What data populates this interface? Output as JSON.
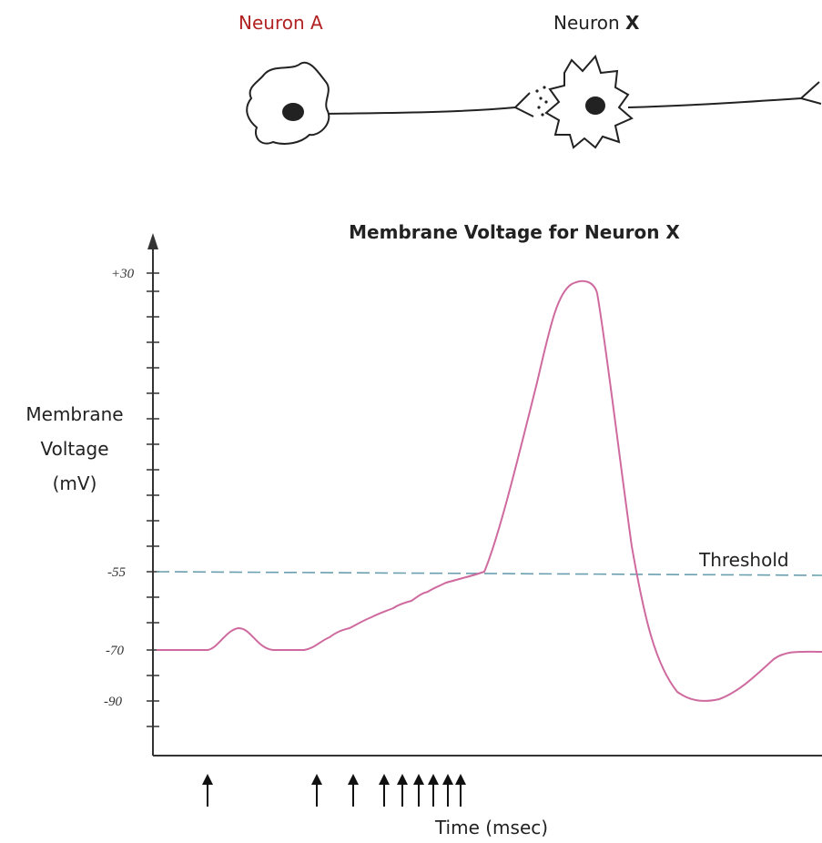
{
  "diagram": {
    "neuron_a": "Neuron A",
    "neuron_x": {
      "word": "Neuron",
      "letter": "X"
    },
    "chart_title": "Membrane Voltage for Neuron X",
    "y_axis_label": [
      "Membrane",
      "Voltage",
      "(mV)"
    ],
    "y_tick_labels": [
      "+30",
      "-55",
      "-70",
      "-90"
    ],
    "threshold_label": "Threshold",
    "x_axis_label": "Time (msec)"
  }
}
